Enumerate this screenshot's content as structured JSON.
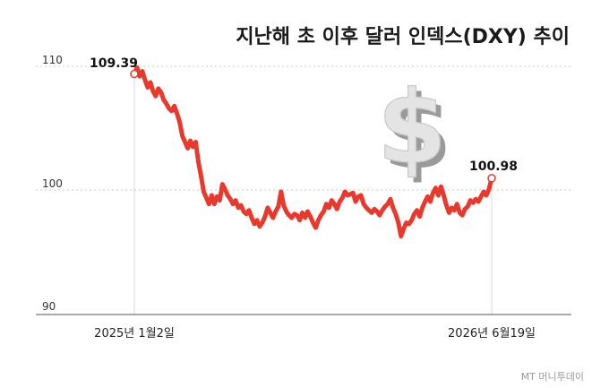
{
  "chart_data": {
    "type": "line",
    "title": "지난해 초 이후 달러 인덱스(DXY) 추이",
    "xlabel": "",
    "ylabel": "",
    "ylim": [
      90,
      110
    ],
    "y_ticks": [
      "110",
      "100",
      "90"
    ],
    "x_tick_labels": [
      "2025년 1월2일",
      "2026년 6월19일"
    ],
    "start_label": "109.39",
    "end_label": "100.98",
    "grid": "horizontal dotted",
    "line_color": "#e8392c",
    "values": [
      109.39,
      109.9,
      109.2,
      109.6,
      108.9,
      108.3,
      108.7,
      108.0,
      107.6,
      108.2,
      107.9,
      107.3,
      107.0,
      106.6,
      106.4,
      106.8,
      106.2,
      105.5,
      104.4,
      103.9,
      103.4,
      104.0,
      103.5,
      103.9,
      102.3,
      101.2,
      99.9,
      99.4,
      98.9,
      99.6,
      98.9,
      99.5,
      99.2,
      100.5,
      100.1,
      99.6,
      99.3,
      98.9,
      99.2,
      98.6,
      98.8,
      98.3,
      98.1,
      98.4,
      97.8,
      97.3,
      97.6,
      97.1,
      97.4,
      97.9,
      98.6,
      98.2,
      97.8,
      98.3,
      98.7,
      99.9,
      98.8,
      98.3,
      98.0,
      97.8,
      98.1,
      98.0,
      97.6,
      98.2,
      97.8,
      98.3,
      97.9,
      97.4,
      97.0,
      97.6,
      98.0,
      98.3,
      98.9,
      98.6,
      99.2,
      98.9,
      98.5,
      99.1,
      99.4,
      99.9,
      99.6,
      99.7,
      99.8,
      99.1,
      99.5,
      99.6,
      98.9,
      98.6,
      98.4,
      98.2,
      98.5,
      98.3,
      98.0,
      98.4,
      98.7,
      98.9,
      99.3,
      98.6,
      98.1,
      97.4,
      96.3,
      96.9,
      97.4,
      97.3,
      97.6,
      98.1,
      98.4,
      97.9,
      98.6,
      99.1,
      99.5,
      99.1,
      99.8,
      100.2,
      99.6,
      100.3,
      99.6,
      98.8,
      98.2,
      98.6,
      98.4,
      98.9,
      98.2,
      98.0,
      98.5,
      98.7,
      99.2,
      99.0,
      99.3,
      99.1,
      99.5,
      99.9,
      99.6,
      100.1,
      100.98
    ]
  },
  "credit": "MT 머니투데이"
}
